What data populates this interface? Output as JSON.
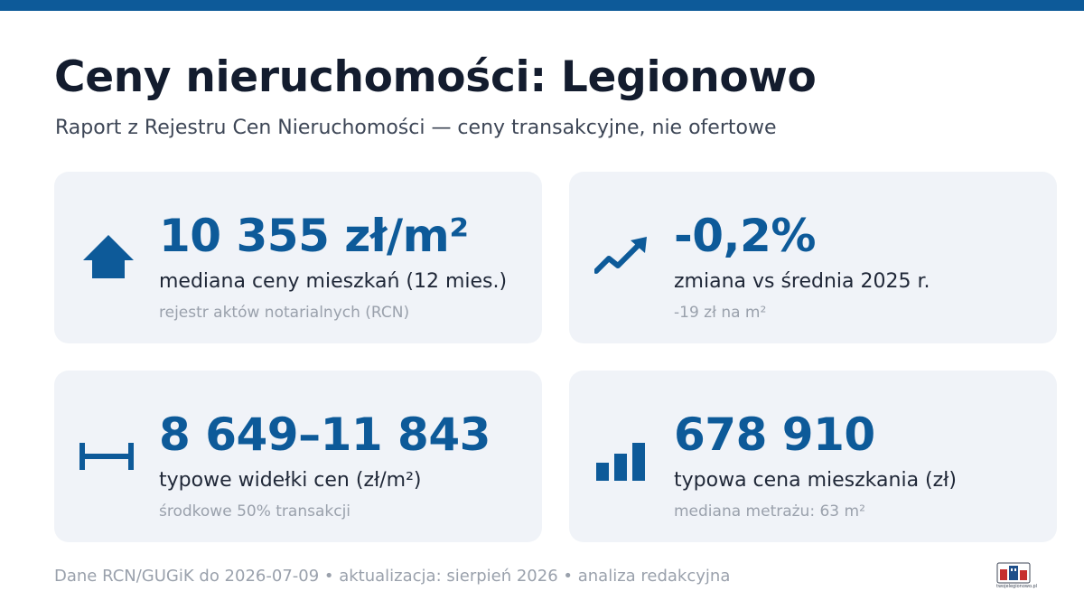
{
  "header": {
    "title": "Ceny nieruchomości: Legionowo",
    "subtitle": "Raport z Rejestru Cen Nieruchomości — ceny transakcyjne, nie ofertowe"
  },
  "cards": [
    {
      "icon": "house-icon",
      "value": "10 355 zł/m²",
      "label": "mediana ceny mieszkań (12 mies.)",
      "note": "rejestr aktów notarialnych (RCN)"
    },
    {
      "icon": "trend-up-icon",
      "value": "-0,2%",
      "label": "zmiana vs średnia 2025 r.",
      "note": "-19 zł na m²"
    },
    {
      "icon": "range-icon",
      "value": "8 649–11 843",
      "label": "typowe widełki cen (zł/m²)",
      "note": "środkowe 50% transakcji"
    },
    {
      "icon": "bar-chart-icon",
      "value": "678 910",
      "label": "typowa cena mieszkania (zł)",
      "note": "mediana metrażu: 63 m²"
    }
  ],
  "footer": {
    "text": "Dane RCN/GUGiK do 2026-07-09 • aktualizacja: sierpień 2026 • analiza redakcyjna"
  },
  "logo": {
    "text": "twojelegionowo.pl"
  },
  "colors": {
    "accent": "#0d5a99",
    "card_background": "#f0f3f8",
    "title": "#131c2e",
    "muted": "#9aa1ac"
  }
}
